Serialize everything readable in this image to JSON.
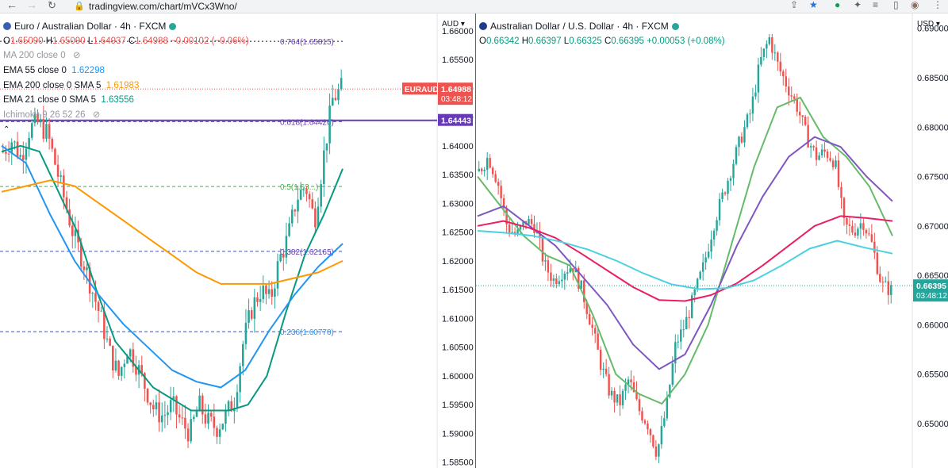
{
  "browser": {
    "url": "tradingview.com/chart/mVCx3Wno/"
  },
  "left": {
    "title": "Euro / Australian Dollar · 4h · FXCM",
    "ohlc": {
      "o": "1.65090",
      "h": "1.65090",
      "l": "1.64937",
      "c": "1.64988",
      "chg": "−0.00102 (−0.06%)"
    },
    "indicators": [
      {
        "label": "MA 200 close 0",
        "value": "",
        "color": "#9598a1"
      },
      {
        "label": "EMA 55 close 0",
        "value": "1.62298",
        "color": "#2196f3"
      },
      {
        "label": "EMA 200 close 0 SMA 5",
        "value": "1.61983",
        "color": "#ff9800"
      },
      {
        "label": "EMA 21 close 0 SMA 5",
        "value": "1.63556",
        "color": "#089981"
      },
      {
        "label": "Ichimoku 9 26 52 26",
        "value": "",
        "color": "#9598a1"
      }
    ],
    "axis_currency": "AUD",
    "badge_symbol": "EURAUD",
    "badge_price": "1.64988",
    "badge_timer": "03:48:12",
    "hline_label": "1.64443",
    "fib_labels": [
      "0.764(1.65815)",
      "0.618(1.64420)",
      "0.5(1.63...)",
      "0.382(1.62165)",
      "0.236(1.60770)"
    ],
    "yticks": [
      "1.66000",
      "1.65500",
      "1.65000",
      "1.64500",
      "1.64000",
      "1.63500",
      "1.63000",
      "1.62500",
      "1.62000",
      "1.61500",
      "1.61000",
      "1.60500",
      "1.60000",
      "1.59500",
      "1.59000",
      "1.58500"
    ]
  },
  "right": {
    "title": "Australian Dollar / U.S. Dollar · 4h · FXCM",
    "ohlc": {
      "o": "0.66342",
      "h": "0.66397",
      "l": "0.66325",
      "c": "0.66395",
      "chg": "+0.00053 (+0.08%)"
    },
    "axis_currency": "USD",
    "badge_price": "0.66395",
    "badge_timer": "03:48:12",
    "yticks": [
      "0.69000",
      "0.68500",
      "0.68000",
      "0.67500",
      "0.67000",
      "0.66500",
      "0.66000",
      "0.65500",
      "0.65000"
    ]
  },
  "chart_data": [
    {
      "type": "candlestick",
      "symbol": "EURAUD",
      "ylim": [
        1.584,
        1.663
      ],
      "close_path": [
        1.639,
        1.641,
        1.638,
        1.643,
        1.644,
        1.642,
        1.636,
        1.63,
        1.624,
        1.62,
        1.615,
        1.61,
        1.604,
        1.6,
        1.605,
        1.602,
        1.598,
        1.594,
        1.593,
        1.595,
        1.592,
        1.59,
        1.595,
        1.592,
        1.591,
        1.593,
        1.596,
        1.606,
        1.612,
        1.615,
        1.613,
        1.62,
        1.624,
        1.631,
        1.633,
        1.627,
        1.638,
        1.648,
        1.65
      ],
      "series": [
        {
          "name": "EMA 21",
          "color": "#089981",
          "values": [
            1.639,
            1.64,
            1.639,
            1.632,
            1.625,
            1.615,
            1.606,
            1.602,
            1.598,
            1.596,
            1.594,
            1.594,
            1.594,
            1.595,
            1.6,
            1.611,
            1.621,
            1.628,
            1.636
          ]
        },
        {
          "name": "EMA 55",
          "color": "#2196f3",
          "values": [
            1.64,
            1.637,
            1.628,
            1.62,
            1.614,
            1.609,
            1.605,
            1.601,
            1.599,
            1.598,
            1.601,
            1.608,
            1.614,
            1.619,
            1.623
          ]
        },
        {
          "name": "EMA 200",
          "color": "#ff9800",
          "values": [
            1.632,
            1.633,
            1.634,
            1.633,
            1.63,
            1.627,
            1.624,
            1.621,
            1.618,
            1.616,
            1.616,
            1.616,
            1.617,
            1.618,
            1.62
          ]
        }
      ],
      "hlines": [
        1.64443
      ],
      "fib_levels": [
        1.65815,
        1.6442,
        1.63293,
        1.62165,
        1.6077
      ]
    },
    {
      "type": "candlestick",
      "symbol": "AUDUSD",
      "ylim": [
        0.6455,
        0.6915
      ],
      "close_path": [
        0.6755,
        0.677,
        0.6745,
        0.67,
        0.669,
        0.6705,
        0.67,
        0.666,
        0.6645,
        0.6655,
        0.666,
        0.6635,
        0.66,
        0.656,
        0.653,
        0.652,
        0.6545,
        0.6515,
        0.65,
        0.647,
        0.6515,
        0.658,
        0.66,
        0.663,
        0.666,
        0.67,
        0.673,
        0.676,
        0.679,
        0.6815,
        0.6865,
        0.689,
        0.686,
        0.684,
        0.682,
        0.679,
        0.677,
        0.6775,
        0.6765,
        0.67,
        0.6695,
        0.6705,
        0.668,
        0.664,
        0.6635
      ],
      "series": [
        {
          "name": "EMA 21",
          "color": "#66bb6a",
          "values": [
            0.675,
            0.672,
            0.669,
            0.667,
            0.666,
            0.661,
            0.655,
            0.653,
            0.652,
            0.655,
            0.66,
            0.668,
            0.676,
            0.682,
            0.683,
            0.679,
            0.677,
            0.674,
            0.669
          ]
        },
        {
          "name": "EMA 55",
          "color": "#7e57c2",
          "values": [
            0.671,
            0.672,
            0.67,
            0.668,
            0.665,
            0.662,
            0.658,
            0.6555,
            0.657,
            0.662,
            0.668,
            0.673,
            0.677,
            0.679,
            0.678,
            0.675,
            0.6725
          ]
        },
        {
          "name": "EMA 200",
          "color": "#e91e63",
          "values": [
            0.67,
            0.6705,
            0.6698,
            0.6688,
            0.6672,
            0.6655,
            0.6638,
            0.6625,
            0.6624,
            0.663,
            0.6642,
            0.666,
            0.668,
            0.67,
            0.671,
            0.6708,
            0.6705
          ]
        },
        {
          "name": "SMA 200",
          "color": "#4dd0e1",
          "values": [
            0.6695,
            0.6693,
            0.669,
            0.6684,
            0.6676,
            0.6665,
            0.6652,
            0.6641,
            0.6636,
            0.6637,
            0.6645,
            0.666,
            0.6677,
            0.6685,
            0.6678,
            0.6672
          ]
        }
      ]
    }
  ]
}
